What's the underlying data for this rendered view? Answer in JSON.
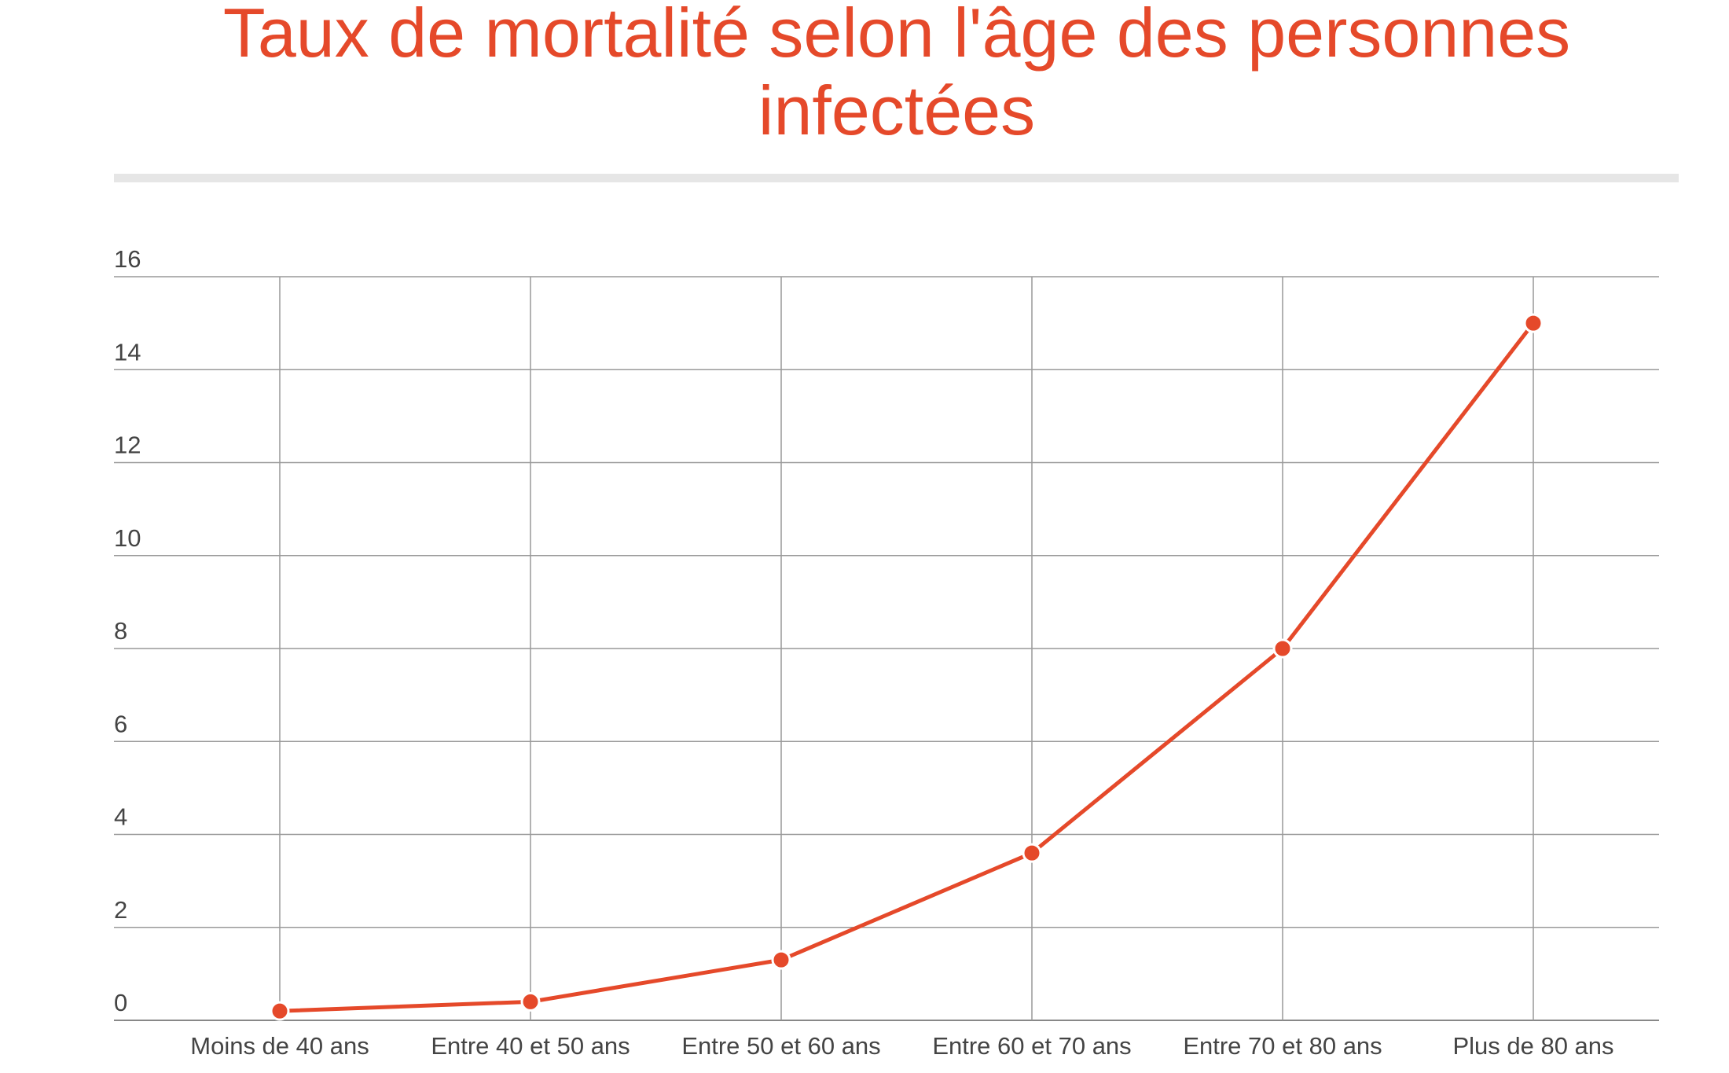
{
  "chart_data": {
    "type": "line",
    "title": "Taux de mortalité selon l'âge des personnes infectées",
    "categories": [
      "Moins de 40 ans",
      "Entre 40 et 50 ans",
      "Entre 50 et 60 ans",
      "Entre 60 et 70 ans",
      "Entre 70 et 80 ans",
      "Plus de 80 ans"
    ],
    "values": [
      0.2,
      0.4,
      1.3,
      3.6,
      8.0,
      15.0
    ],
    "color": "#e5492a",
    "ylim": [
      0,
      16
    ],
    "yticks": [
      0,
      2,
      4,
      6,
      8,
      10,
      12,
      14,
      16
    ],
    "grid": true
  }
}
